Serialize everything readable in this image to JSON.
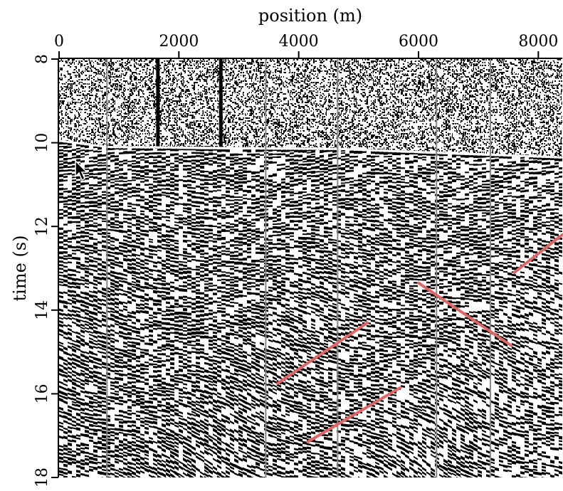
{
  "chart_data": {
    "type": "heatmap",
    "description_type": "seismic-section",
    "xlabel": "position (m)",
    "ylabel": "time (s)",
    "xlim": [
      0,
      8400
    ],
    "ylim": [
      8,
      18
    ],
    "x_ticks": [
      0,
      2000,
      4000,
      6000,
      8000
    ],
    "x_tick_labels": [
      "0",
      "2000",
      "4000",
      "6000",
      "8000"
    ],
    "y_ticks": [
      8,
      10,
      12,
      14,
      16,
      18
    ],
    "y_tick_labels": [
      "8",
      "10",
      "12",
      "14",
      "16",
      "18"
    ],
    "x_axis_position": "top",
    "y_axis_inverted": true,
    "first_break_time_s": [
      {
        "x": 0,
        "t": 9.95
      },
      {
        "x": 800,
        "t": 10.1
      },
      {
        "x": 4700,
        "t": 10.15
      },
      {
        "x": 8400,
        "t": 10.35
      }
    ],
    "vertical_trace_lines_x": [
      800,
      3450,
      4650,
      6300,
      7200
    ],
    "dark_traces_x": [
      1650,
      2700
    ],
    "annotation_lines": [
      {
        "x1": 3650,
        "t1": 15.75,
        "x2": 5150,
        "t2": 14.3
      },
      {
        "x1": 4150,
        "t1": 17.15,
        "x2": 5700,
        "t2": 15.85
      },
      {
        "x1": 6000,
        "t1": 13.35,
        "x2": 7550,
        "t2": 14.85
      },
      {
        "x1": 7600,
        "t1": 13.1,
        "x2": 8400,
        "t2": 12.2
      }
    ],
    "colors": {
      "wiggle": "#000000",
      "background": "#ffffff",
      "annotation": "#e06666",
      "trace_marker": "#888888"
    }
  }
}
